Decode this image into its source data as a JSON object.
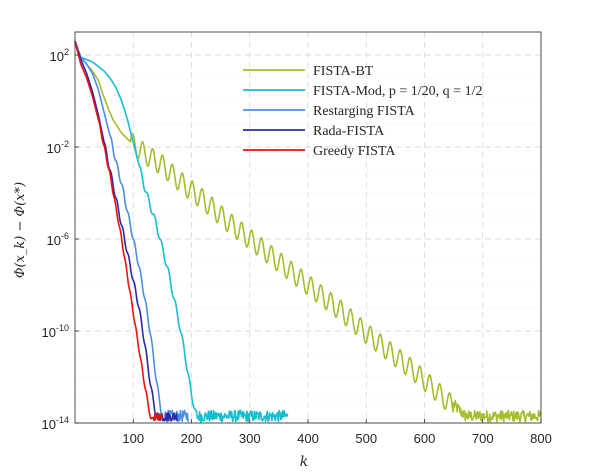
{
  "chart_data": {
    "type": "line",
    "title": "",
    "xlabel": "k",
    "ylabel": "Φ(x_k) − Φ(x*)",
    "xlim": [
      0,
      800
    ],
    "ylim_log10": [
      -14,
      3
    ],
    "yscale": "log",
    "grid": true,
    "legend_position": "top-right",
    "x_ticks": [
      {
        "value": 100,
        "label": "100"
      },
      {
        "value": 200,
        "label": "200"
      },
      {
        "value": 300,
        "label": "300"
      },
      {
        "value": 400,
        "label": "400"
      },
      {
        "value": 500,
        "label": "500"
      },
      {
        "value": 600,
        "label": "600"
      },
      {
        "value": 700,
        "label": "700"
      },
      {
        "value": 800,
        "label": "800"
      }
    ],
    "y_ticks": [
      {
        "exp": 2,
        "base": "10",
        "sup": "2"
      },
      {
        "exp": -2,
        "base": "10",
        "sup": "-2"
      },
      {
        "exp": -6,
        "base": "10",
        "sup": "-6"
      },
      {
        "exp": -10,
        "base": "10",
        "sup": "-10"
      },
      {
        "exp": -14,
        "base": "10",
        "sup": "-14"
      }
    ],
    "series": [
      {
        "name": "FISTA-BT",
        "color": "#a6bd2e",
        "points": [
          [
            0,
            2.6
          ],
          [
            10,
            1.9
          ],
          [
            20,
            1.6
          ],
          [
            30,
            1.3
          ],
          [
            40,
            0.9
          ],
          [
            45,
            0.5
          ],
          [
            55,
            -0.2
          ],
          [
            65,
            -0.8
          ],
          [
            80,
            -1.4
          ],
          [
            100,
            -1.9
          ],
          [
            120,
            -2.3
          ],
          [
            150,
            -2.8
          ],
          [
            180,
            -3.5
          ],
          [
            220,
            -4.3
          ],
          [
            260,
            -5.2
          ],
          [
            300,
            -6.0
          ],
          [
            340,
            -6.8
          ],
          [
            380,
            -7.6
          ],
          [
            420,
            -8.4
          ],
          [
            460,
            -9.2
          ],
          [
            500,
            -10.1
          ],
          [
            540,
            -10.9
          ],
          [
            580,
            -11.7
          ],
          [
            620,
            -12.6
          ],
          [
            650,
            -13.3
          ],
          [
            670,
            -13.8
          ],
          [
            800,
            -13.8
          ]
        ],
        "osc_amplitude": 0.45,
        "osc_period": 17,
        "osc_start": 95,
        "floor_start": 650,
        "floor_noise": 0.25
      },
      {
        "name": "FISTA-Mod, p = 1/20, q = 1/2",
        "color": "#17becf",
        "points": [
          [
            0,
            2.6
          ],
          [
            10,
            1.9
          ],
          [
            20,
            1.8
          ],
          [
            30,
            1.7
          ],
          [
            40,
            1.5
          ],
          [
            50,
            1.3
          ],
          [
            60,
            1.0
          ],
          [
            70,
            0.6
          ],
          [
            80,
            0.0
          ],
          [
            90,
            -0.8
          ],
          [
            100,
            -1.8
          ],
          [
            110,
            -2.8
          ],
          [
            120,
            -3.8
          ],
          [
            130,
            -4.6
          ],
          [
            140,
            -5.4
          ],
          [
            150,
            -6.4
          ],
          [
            160,
            -7.4
          ],
          [
            170,
            -8.6
          ],
          [
            180,
            -9.8
          ],
          [
            190,
            -11.2
          ],
          [
            200,
            -12.8
          ],
          [
            210,
            -13.8
          ],
          [
            365,
            -13.8
          ]
        ],
        "osc_amplitude": 0.15,
        "osc_period": 12,
        "osc_start": 110,
        "floor_start": 210,
        "floor_noise": 0.25
      },
      {
        "name": "Restarging FISTA",
        "color": "#4a90e2",
        "points": [
          [
            0,
            2.6
          ],
          [
            10,
            1.9
          ],
          [
            20,
            1.6
          ],
          [
            30,
            1.2
          ],
          [
            40,
            0.5
          ],
          [
            50,
            -0.5
          ],
          [
            60,
            -1.5
          ],
          [
            70,
            -2.6
          ],
          [
            80,
            -3.6
          ],
          [
            90,
            -4.8
          ],
          [
            100,
            -6.0
          ],
          [
            110,
            -7.2
          ],
          [
            120,
            -8.6
          ],
          [
            130,
            -10.2
          ],
          [
            140,
            -12.2
          ],
          [
            150,
            -13.8
          ],
          [
            195,
            -13.8
          ]
        ],
        "osc_amplitude": 0.12,
        "osc_period": 10,
        "osc_start": 60,
        "floor_start": 150,
        "floor_noise": 0.25
      },
      {
        "name": "Rada-FISTA",
        "color": "#2a2aa8",
        "points": [
          [
            0,
            2.6
          ],
          [
            10,
            1.8
          ],
          [
            20,
            1.2
          ],
          [
            30,
            0.4
          ],
          [
            40,
            -0.6
          ],
          [
            50,
            -1.8
          ],
          [
            60,
            -3.0
          ],
          [
            70,
            -4.2
          ],
          [
            80,
            -5.4
          ],
          [
            90,
            -6.6
          ],
          [
            100,
            -7.8
          ],
          [
            110,
            -9.0
          ],
          [
            120,
            -10.6
          ],
          [
            130,
            -12.4
          ],
          [
            140,
            -13.8
          ],
          [
            175,
            -13.8
          ]
        ],
        "osc_amplitude": 0.12,
        "osc_period": 10,
        "osc_start": 50,
        "floor_start": 140,
        "floor_noise": 0.2
      },
      {
        "name": "Greedy FISTA",
        "color": "#ee1111",
        "points": [
          [
            0,
            2.6
          ],
          [
            10,
            1.6
          ],
          [
            20,
            1.0
          ],
          [
            30,
            0.2
          ],
          [
            40,
            -0.8
          ],
          [
            50,
            -2.0
          ],
          [
            60,
            -3.2
          ],
          [
            70,
            -4.6
          ],
          [
            80,
            -6.0
          ],
          [
            90,
            -7.6
          ],
          [
            100,
            -9.2
          ],
          [
            110,
            -10.8
          ],
          [
            120,
            -12.4
          ],
          [
            130,
            -13.8
          ],
          [
            150,
            -13.8
          ]
        ],
        "osc_amplitude": 0.08,
        "osc_period": 9,
        "osc_start": 40,
        "floor_start": 130,
        "floor_noise": 0.15
      }
    ]
  }
}
